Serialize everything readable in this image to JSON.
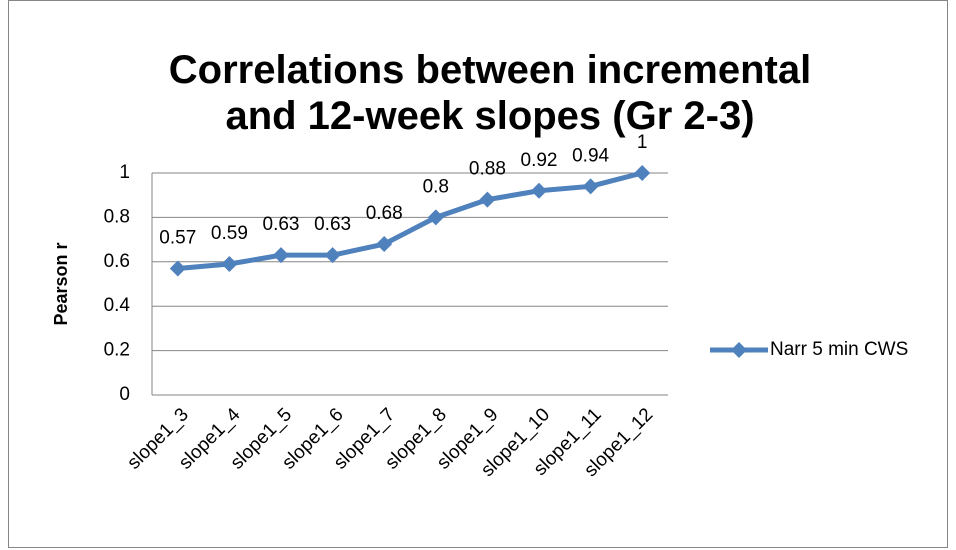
{
  "chart_data": {
    "type": "line",
    "title": "Correlations between incremental and 12-week slopes (Gr 2-3)",
    "y_label": "Pearson r",
    "categories": [
      "slope1_3",
      "slope1_4",
      "slope1_5",
      "slope1_6",
      "slope1_7",
      "slope1_8",
      "slope1_9",
      "slope1_10",
      "slope1_11",
      "slope1_12"
    ],
    "series": [
      {
        "name": "Narr 5 min CWS",
        "color": "#4f81bd",
        "values": [
          0.57,
          0.59,
          0.63,
          0.63,
          0.68,
          0.8,
          0.88,
          0.92,
          0.94,
          1
        ]
      }
    ],
    "ylim": [
      0,
      1
    ],
    "yticks": [
      0,
      0.2,
      0.4,
      0.6,
      0.8,
      1
    ],
    "grid": true,
    "legend": "right",
    "data_labels": true
  }
}
